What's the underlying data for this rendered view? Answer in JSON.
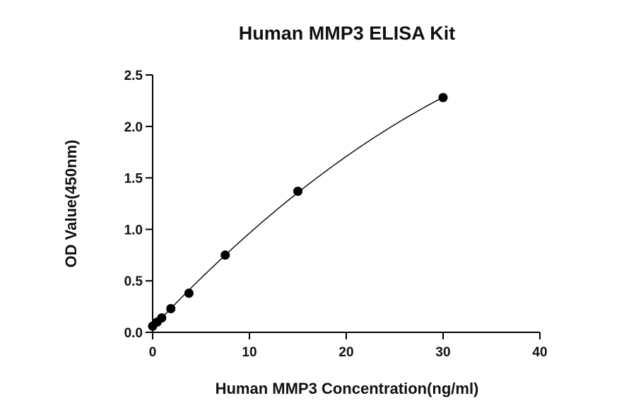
{
  "chart_data": {
    "type": "scatter",
    "title": "Human MMP3 ELISA Kit",
    "xlabel": "Human  MMP3 Concentration(ng/ml)",
    "ylabel": "OD Value(450nm)",
    "xlim": [
      0,
      40
    ],
    "ylim": [
      0,
      2.5
    ],
    "xticks": [
      0,
      10,
      20,
      30,
      40
    ],
    "yticks": [
      0.0,
      0.5,
      1.0,
      1.5,
      2.0,
      2.5
    ],
    "xtick_labels": [
      "0",
      "10",
      "20",
      "30",
      "40"
    ],
    "ytick_labels": [
      "0.0",
      "0.5",
      "1.0",
      "1.5",
      "2.0",
      "2.5"
    ],
    "grid": false,
    "legend": "none",
    "fit_curve": true,
    "series": [
      {
        "x": [
          0,
          0.47,
          0.94,
          1.88,
          3.75,
          7.5,
          15,
          30
        ],
        "y": [
          0.06,
          0.1,
          0.14,
          0.23,
          0.38,
          0.75,
          1.37,
          2.28
        ]
      }
    ]
  }
}
